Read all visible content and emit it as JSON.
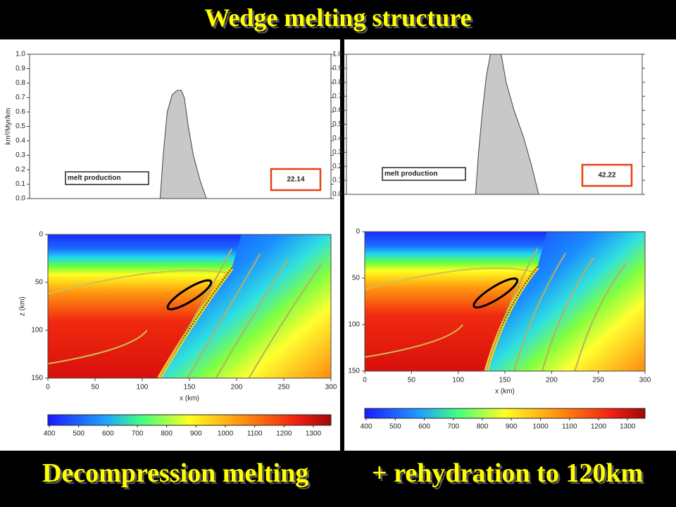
{
  "title": "Wedge melting structure",
  "captions": [
    "Decompression melting",
    "+ rehydration to 120km"
  ],
  "chart_data": [
    {
      "type": "area",
      "ylabel": "km²/Myr/km",
      "label": "melt production",
      "value_box": 22.14,
      "color": "#c8c8c8",
      "xlim": [
        0,
        300
      ],
      "ylim": [
        0,
        1
      ],
      "yticks": [
        {
          "value": 0,
          "label": "0.0"
        },
        {
          "value": 0.1,
          "label": "0.1"
        },
        {
          "value": 0.2,
          "label": "0.2"
        },
        {
          "value": 0.3,
          "label": "0.3"
        },
        {
          "value": 0.4,
          "label": "0.4"
        },
        {
          "value": 0.5,
          "label": "0.5"
        },
        {
          "value": 0.6,
          "label": "0.6"
        },
        {
          "value": 0.7,
          "label": "0.7"
        },
        {
          "value": 0.8,
          "label": "0.8"
        },
        {
          "value": 0.9,
          "label": "0.9"
        },
        {
          "value": 1,
          "label": "1.0"
        }
      ],
      "x": [
        130,
        133,
        137,
        142,
        147,
        151,
        154,
        158,
        163,
        170,
        176
      ],
      "values": [
        0,
        0.3,
        0.6,
        0.72,
        0.75,
        0.75,
        0.7,
        0.5,
        0.3,
        0.12,
        0
      ]
    },
    {
      "type": "area",
      "label": "melt production",
      "value_box": 42.22,
      "color": "#c8c8c8",
      "xlim": [
        0,
        300
      ],
      "ylim": [
        0,
        1
      ],
      "yticks": [
        {
          "value": 0,
          "label": "0.0"
        },
        {
          "value": 0.1,
          "label": "0.1"
        },
        {
          "value": 0.2,
          "label": "0.2"
        },
        {
          "value": 0.3,
          "label": "0.3"
        },
        {
          "value": 0.4,
          "label": "0.4"
        },
        {
          "value": 0.5,
          "label": "0.5"
        },
        {
          "value": 0.6,
          "label": "0.6"
        },
        {
          "value": 0.7,
          "label": "0.7"
        },
        {
          "value": 0.8,
          "label": "0.8"
        },
        {
          "value": 0.9,
          "label": "0.9"
        },
        {
          "value": 1,
          "label": "1.0"
        }
      ],
      "x": [
        131,
        134,
        138,
        142,
        146,
        157,
        162,
        170,
        180,
        188,
        195
      ],
      "values": [
        0,
        0.3,
        0.6,
        0.85,
        1.0,
        1.0,
        0.8,
        0.6,
        0.4,
        0.2,
        0
      ]
    },
    {
      "type": "heatmap",
      "xlabel": "x (km)",
      "ylabel": "z (km)",
      "xlim": [
        0,
        300
      ],
      "ylim": [
        150,
        0
      ],
      "xticks": [
        0,
        50,
        100,
        150,
        200,
        250,
        300
      ],
      "yticks": [
        0,
        50,
        100,
        150
      ],
      "colorbar_lim": [
        395,
        1360
      ],
      "colorbar_ticks": [
        400,
        500,
        600,
        700,
        800,
        900,
        1000,
        1100,
        1200,
        1300
      ]
    },
    {
      "type": "heatmap",
      "xlabel": "x (km)",
      "xlim": [
        0,
        300
      ],
      "ylim": [
        150,
        0
      ],
      "xticks": [
        0,
        50,
        100,
        150,
        200,
        250,
        300
      ],
      "yticks": [
        0,
        50,
        100,
        150
      ],
      "colorbar_lim": [
        395,
        1360
      ],
      "colorbar_ticks": [
        400,
        500,
        600,
        700,
        800,
        900,
        1000,
        1100,
        1200,
        1300
      ]
    }
  ]
}
